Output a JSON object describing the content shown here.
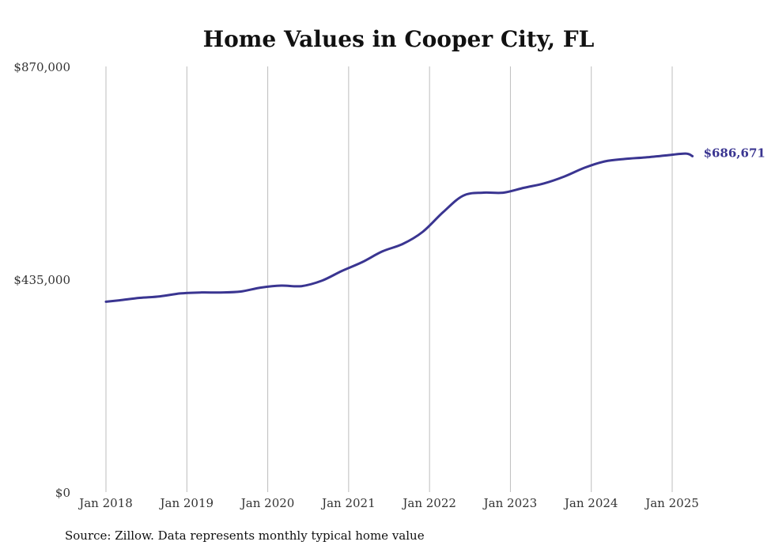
{
  "chart_data": {
    "type": "line",
    "title": "Home Values in Cooper City, FL",
    "xlabel": "",
    "ylabel": "",
    "ylim": [
      0,
      870000
    ],
    "y_ticks": [
      0,
      435000,
      870000
    ],
    "y_tick_labels": [
      "$0",
      "$435,000",
      "$870,000"
    ],
    "x_ticks": [
      "2018-01",
      "2019-01",
      "2020-01",
      "2021-01",
      "2022-01",
      "2023-01",
      "2024-01",
      "2025-01"
    ],
    "x_tick_labels": [
      "Jan 2018",
      "Jan 2019",
      "Jan 2020",
      "Jan 2021",
      "Jan 2022",
      "Jan 2023",
      "Jan 2024",
      "Jan 2025"
    ],
    "grid": "vertical",
    "line_color": "#3a3591",
    "end_label": "$686,671",
    "series": [
      {
        "name": "",
        "x": [
          "2018-01",
          "2018-03",
          "2018-06",
          "2018-09",
          "2018-12",
          "2019-03",
          "2019-06",
          "2019-09",
          "2019-12",
          "2020-03",
          "2020-06",
          "2020-09",
          "2020-12",
          "2021-03",
          "2021-06",
          "2021-09",
          "2021-12",
          "2022-03",
          "2022-06",
          "2022-09",
          "2022-12",
          "2023-03",
          "2023-06",
          "2023-09",
          "2023-12",
          "2024-03",
          "2024-06",
          "2024-09",
          "2024-12",
          "2025-03",
          "2025-04"
        ],
        "values": [
          389000,
          392000,
          397000,
          400000,
          406000,
          408000,
          408000,
          410000,
          418000,
          422000,
          421000,
          432000,
          452000,
          470000,
          492000,
          507000,
          532000,
          572000,
          606000,
          612000,
          612000,
          622000,
          631000,
          645000,
          663000,
          676000,
          681000,
          684000,
          688000,
          692000,
          686671
        ]
      }
    ]
  },
  "source_note": "Source: Zillow. Data represents monthly typical home value"
}
